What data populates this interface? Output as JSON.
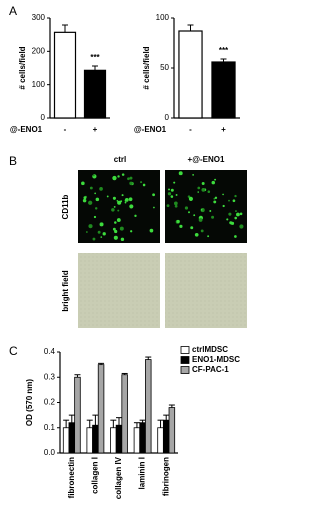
{
  "panel_labels": [
    "A",
    "B",
    "C"
  ],
  "micrographs": {
    "columns": [
      "ctrl",
      "+@-ENO1"
    ],
    "rows": [
      "CD11b",
      "bright field"
    ]
  },
  "chart_data": [
    {
      "type": "bar",
      "ylabel": "# cells/field",
      "xlabel": "@-ENO1",
      "categories": [
        "-",
        "+"
      ],
      "values": [
        257,
        143
      ],
      "errors": [
        22,
        13
      ],
      "colors": [
        "#ffffff",
        "#000000"
      ],
      "significance_labels": [
        null,
        "***"
      ],
      "ylim": [
        0,
        300
      ],
      "yticks": [
        0,
        100,
        200,
        300
      ]
    },
    {
      "type": "bar",
      "ylabel": "# cells/field",
      "xlabel": "@-ENO1",
      "categories": [
        "-",
        "+"
      ],
      "values": [
        87,
        56
      ],
      "errors": [
        6,
        3
      ],
      "colors": [
        "#ffffff",
        "#000000"
      ],
      "significance_labels": [
        null,
        "***"
      ],
      "ylim": [
        0,
        100
      ],
      "yticks": [
        0,
        50,
        100
      ]
    },
    {
      "type": "grouped-bar",
      "ylabel": "OD (570 nm)",
      "categories": [
        "fibronectin",
        "collagen I",
        "collagen IV",
        "laminin I",
        "fibrinogen"
      ],
      "series": [
        {
          "name": "ctrlMDSC",
          "color": "#ffffff",
          "values": [
            0.1,
            0.1,
            0.1,
            0.1,
            0.1
          ],
          "errors": [
            0.03,
            0.03,
            0.03,
            0.02,
            0.03
          ]
        },
        {
          "name": "ENO1-MDSC",
          "color": "#000000",
          "values": [
            0.12,
            0.11,
            0.11,
            0.12,
            0.13
          ],
          "errors": [
            0.03,
            0.04,
            0.03,
            0.01,
            0.02
          ]
        },
        {
          "name": "CF-PAC-1",
          "color": "#a6a6a6",
          "values": [
            0.3,
            0.35,
            0.31,
            0.37,
            0.18
          ],
          "errors": [
            0.01,
            0.005,
            0.005,
            0.01,
            0.01
          ]
        }
      ],
      "ylim": [
        0,
        0.4
      ],
      "yticks": [
        {
          "value": 0,
          "label": "0.0"
        },
        0.1,
        0.2,
        0.3,
        0.4
      ],
      "legend": "top-right"
    }
  ]
}
